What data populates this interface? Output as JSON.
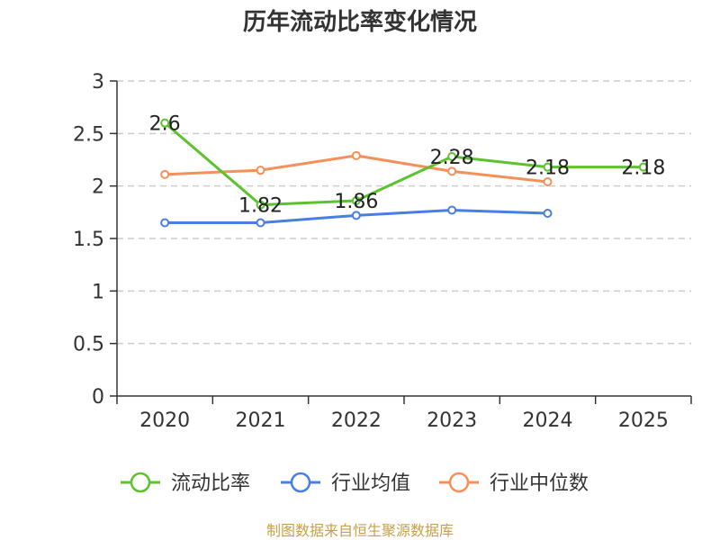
{
  "chart_data": {
    "type": "line",
    "title": "历年流动比率变化情况",
    "categories": [
      "2020",
      "2021",
      "2022",
      "2023",
      "2024",
      "2025"
    ],
    "ylim": [
      0,
      3
    ],
    "yticks": [
      "0",
      "0.5",
      "1",
      "1.5",
      "2",
      "2.5",
      "3"
    ],
    "grid": true,
    "legend_position": "bottom",
    "series": [
      {
        "name": "流动比率",
        "color": "#5cc22e",
        "values": [
          2.6,
          1.82,
          1.86,
          2.28,
          2.18,
          2.18
        ],
        "labels": [
          "2.6",
          "1.82",
          "1.86",
          "2.28",
          "2.18",
          "2.18"
        ]
      },
      {
        "name": "行业均值",
        "color": "#4a7ee0",
        "values": [
          1.65,
          1.65,
          1.72,
          1.77,
          1.74,
          null
        ]
      },
      {
        "name": "行业中位数",
        "color": "#f5905a",
        "values": [
          2.11,
          2.15,
          2.29,
          2.14,
          2.04,
          null
        ]
      }
    ]
  },
  "source_text": "制图数据来自恒生聚源数据库"
}
